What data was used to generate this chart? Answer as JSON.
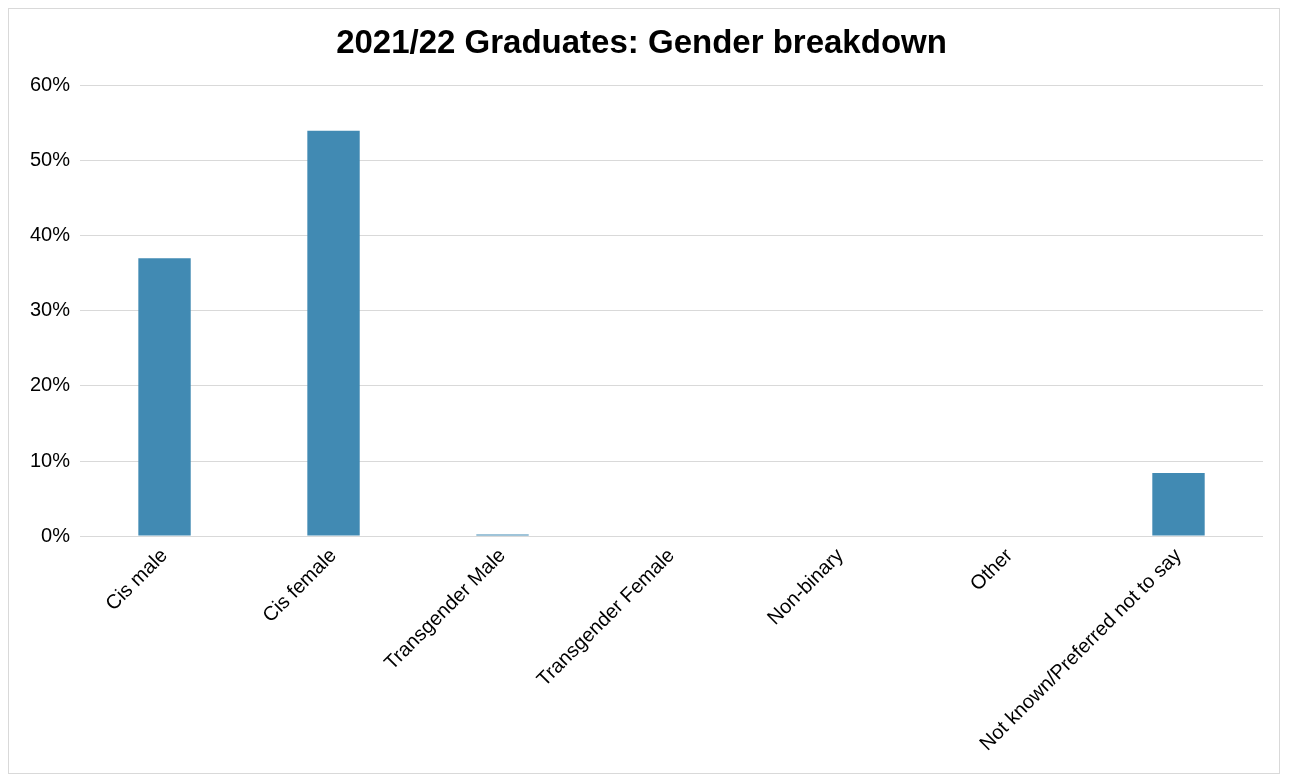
{
  "chart_data": {
    "type": "bar",
    "title": "2021/22 Graduates: Gender breakdown",
    "categories": [
      "Cis male",
      "Cis female",
      "Transgender Male",
      "Transgender Female",
      "Non-binary",
      "Other",
      "Not known/Preferred not to say"
    ],
    "values": [
      37,
      54,
      0.2,
      0,
      0,
      0,
      8.4
    ],
    "color": "#418ab3",
    "ylim": [
      0,
      60
    ],
    "yticks": [
      {
        "value": 0,
        "label": "0%"
      },
      {
        "value": 10,
        "label": "10%"
      },
      {
        "value": 20,
        "label": "20%"
      },
      {
        "value": 30,
        "label": "30%"
      },
      {
        "value": 40,
        "label": "40%"
      },
      {
        "value": 50,
        "label": "50%"
      },
      {
        "value": 60,
        "label": "60%"
      }
    ],
    "grid": "y",
    "legend": false
  }
}
